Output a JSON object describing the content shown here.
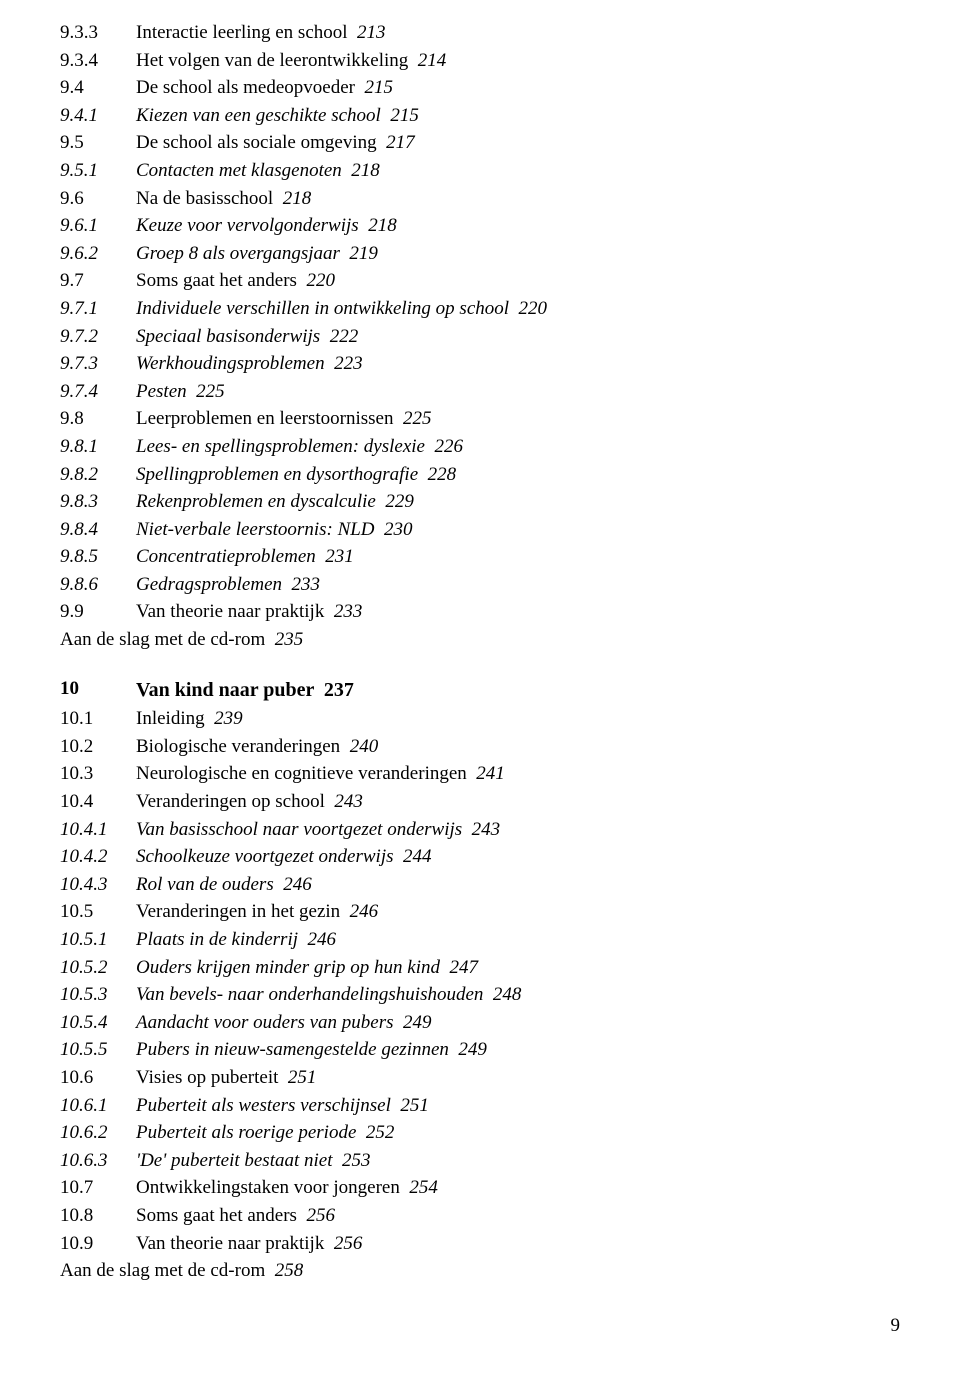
{
  "entries": [
    {
      "num": "9.3.3",
      "title": "Interactie leerling en school",
      "page": "213",
      "italic": false
    },
    {
      "num": "9.3.4",
      "title": "Het volgen van de leerontwikkeling",
      "page": "214",
      "italic": false
    },
    {
      "num": "9.4",
      "title": "De school als medeopvoeder",
      "page": "215",
      "italic": false
    },
    {
      "num": "9.4.1",
      "title": "Kiezen van een geschikte school",
      "page": "215",
      "italic": true
    },
    {
      "num": "9.5",
      "title": "De school als sociale omgeving",
      "page": "217",
      "italic": false
    },
    {
      "num": "9.5.1",
      "title": "Contacten met klasgenoten",
      "page": "218",
      "italic": true
    },
    {
      "num": "9.6",
      "title": "Na de basisschool",
      "page": "218",
      "italic": false
    },
    {
      "num": "9.6.1",
      "title": "Keuze voor vervolgonderwijs",
      "page": "218",
      "italic": true
    },
    {
      "num": "9.6.2",
      "title": "Groep 8 als overgangsjaar",
      "page": "219",
      "italic": true
    },
    {
      "num": "9.7",
      "title": "Soms gaat het anders",
      "page": "220",
      "italic": false
    },
    {
      "num": "9.7.1",
      "title": "Individuele verschillen in ontwikkeling op school",
      "page": "220",
      "italic": true
    },
    {
      "num": "9.7.2",
      "title": "Speciaal basisonderwijs",
      "page": "222",
      "italic": true
    },
    {
      "num": "9.7.3",
      "title": "Werkhoudingsproblemen",
      "page": "223",
      "italic": true
    },
    {
      "num": "9.7.4",
      "title": "Pesten",
      "page": "225",
      "italic": true
    },
    {
      "num": "9.8",
      "title": "Leerproblemen en leerstoornissen",
      "page": "225",
      "italic": false
    },
    {
      "num": "9.8.1",
      "title": "Lees- en spellingsproblemen: dyslexie",
      "page": "226",
      "italic": true
    },
    {
      "num": "9.8.2",
      "title": "Spellingproblemen en dysorthografie",
      "page": "228",
      "italic": true
    },
    {
      "num": "9.8.3",
      "title": "Rekenproblemen en dyscalculie",
      "page": "229",
      "italic": true
    },
    {
      "num": "9.8.4",
      "title": "Niet-verbale leerstoornis: NLD",
      "page": "230",
      "italic": true
    },
    {
      "num": "9.8.5",
      "title": "Concentratieproblemen",
      "page": "231",
      "italic": true
    },
    {
      "num": "9.8.6",
      "title": "Gedragsproblemen",
      "page": "233",
      "italic": true
    },
    {
      "num": "9.9",
      "title": "Van theorie naar praktijk",
      "page": "233",
      "italic": false
    }
  ],
  "footer1": {
    "text": "Aan de slag met de cd-rom",
    "page": "235"
  },
  "chapter": {
    "num": "10",
    "title": "Van kind naar puber",
    "page": "237"
  },
  "entries2": [
    {
      "num": "10.1",
      "title": "Inleiding",
      "page": "239",
      "italic": false
    },
    {
      "num": "10.2",
      "title": "Biologische veranderingen",
      "page": "240",
      "italic": false
    },
    {
      "num": "10.3",
      "title": "Neurologische en cognitieve veranderingen",
      "page": "241",
      "italic": false
    },
    {
      "num": "10.4",
      "title": "Veranderingen op school",
      "page": "243",
      "italic": false
    },
    {
      "num": "10.4.1",
      "title": "Van basisschool naar voortgezet onderwijs",
      "page": "243",
      "italic": true
    },
    {
      "num": "10.4.2",
      "title": "Schoolkeuze voortgezet onderwijs",
      "page": "244",
      "italic": true
    },
    {
      "num": "10.4.3",
      "title": "Rol van de ouders",
      "page": "246",
      "italic": true
    },
    {
      "num": "10.5",
      "title": "Veranderingen in het gezin",
      "page": "246",
      "italic": false
    },
    {
      "num": "10.5.1",
      "title": "Plaats in de kinderrij",
      "page": "246",
      "italic": true
    },
    {
      "num": "10.5.2",
      "title": "Ouders krijgen minder grip op hun kind",
      "page": "247",
      "italic": true
    },
    {
      "num": "10.5.3",
      "title": "Van bevels- naar onderhandelingshuishouden",
      "page": "248",
      "italic": true
    },
    {
      "num": "10.5.4",
      "title": "Aandacht voor ouders van pubers",
      "page": "249",
      "italic": true
    },
    {
      "num": "10.5.5",
      "title": "Pubers in nieuw-samengestelde gezinnen",
      "page": "249",
      "italic": true
    },
    {
      "num": "10.6",
      "title": "Visies op puberteit",
      "page": "251",
      "italic": false
    },
    {
      "num": "10.6.1",
      "title": "Puberteit als westers verschijnsel",
      "page": "251",
      "italic": true
    },
    {
      "num": "10.6.2",
      "title": "Puberteit als roerige periode",
      "page": "252",
      "italic": true
    },
    {
      "num": "10.6.3",
      "title": "'De' puberteit bestaat niet",
      "page": "253",
      "italic": true
    },
    {
      "num": "10.7",
      "title": "Ontwikkelingstaken voor jongeren",
      "page": "254",
      "italic": false
    },
    {
      "num": "10.8",
      "title": "Soms gaat het anders",
      "page": "256",
      "italic": false
    },
    {
      "num": "10.9",
      "title": "Van theorie naar praktijk",
      "page": "256",
      "italic": false
    }
  ],
  "footer2": {
    "text": "Aan de slag met de cd-rom",
    "page": "258"
  },
  "pageNumber": "9"
}
